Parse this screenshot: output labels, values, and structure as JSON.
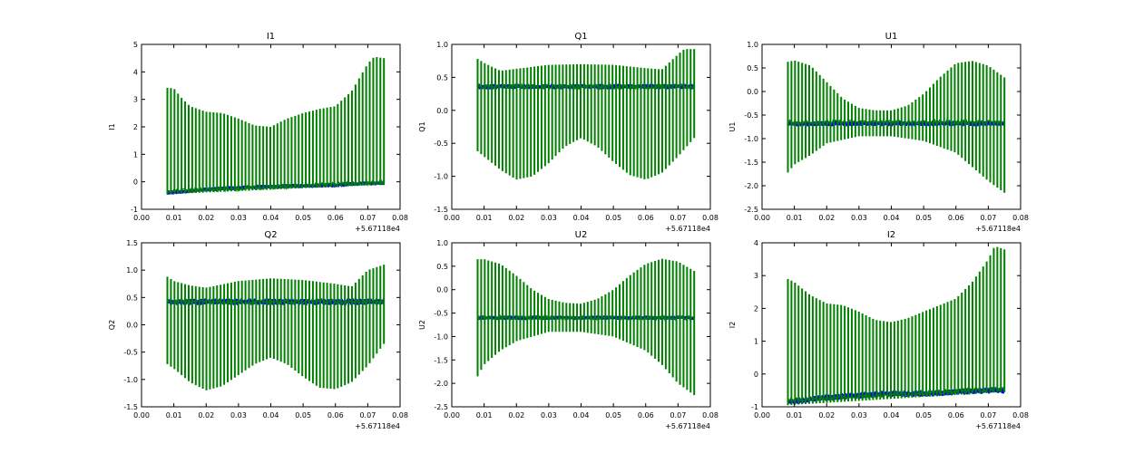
{
  "figure": {
    "background": "#ffffff",
    "series_colors": {
      "blue": "#0000ff",
      "green": "#007f00"
    }
  },
  "chart_data": [
    {
      "type": "line",
      "title": "I1",
      "ylabel": "I1",
      "xlim": [
        0.0,
        0.08
      ],
      "ylim": [
        -1,
        5
      ],
      "xticks": [
        "0.00",
        "0.01",
        "0.02",
        "0.03",
        "0.04",
        "0.05",
        "0.06",
        "0.07",
        "0.08"
      ],
      "yticks": [
        -1,
        0,
        1,
        2,
        3,
        4,
        5
      ],
      "x_offset": "+5.67118e4",
      "series": [
        {
          "color": "#0000ff",
          "kind": "noise",
          "points": [
            [
              0.008,
              -0.4
            ],
            [
              0.02,
              -0.28
            ],
            [
              0.03,
              -0.22
            ],
            [
              0.04,
              -0.17
            ],
            [
              0.05,
              -0.15
            ],
            [
              0.06,
              -0.12
            ],
            [
              0.07,
              -0.05
            ],
            [
              0.075,
              -0.05
            ]
          ],
          "width": 0.08
        },
        {
          "color": "#007f00",
          "kind": "spikes",
          "baseline": [
            [
              0.008,
              -0.35
            ],
            [
              0.075,
              -0.02
            ]
          ],
          "peaks": [
            [
              0.008,
              3.42
            ],
            [
              0.01,
              3.4
            ],
            [
              0.012,
              3.1
            ],
            [
              0.015,
              2.75
            ],
            [
              0.02,
              2.55
            ],
            [
              0.025,
              2.5
            ],
            [
              0.03,
              2.3
            ],
            [
              0.035,
              2.05
            ],
            [
              0.04,
              2.0
            ],
            [
              0.045,
              2.3
            ],
            [
              0.05,
              2.5
            ],
            [
              0.055,
              2.65
            ],
            [
              0.06,
              2.75
            ],
            [
              0.065,
              3.3
            ],
            [
              0.07,
              4.3
            ],
            [
              0.072,
              4.55
            ],
            [
              0.075,
              4.5
            ]
          ],
          "troughs": [
            [
              0.008,
              -0.45
            ],
            [
              0.075,
              -0.1
            ]
          ]
        }
      ]
    },
    {
      "type": "line",
      "title": "Q1",
      "ylabel": "Q1",
      "xlim": [
        0.0,
        0.08
      ],
      "ylim": [
        -1.5,
        1.0
      ],
      "xticks": [
        "0.00",
        "0.01",
        "0.02",
        "0.03",
        "0.04",
        "0.05",
        "0.06",
        "0.07",
        "0.08"
      ],
      "yticks": [
        -1.5,
        -1.0,
        -0.5,
        0.0,
        0.5,
        1.0
      ],
      "x_offset": "+5.67118e4",
      "series": [
        {
          "color": "#0000ff",
          "kind": "noise",
          "points": [
            [
              0.008,
              0.36
            ],
            [
              0.075,
              0.36
            ]
          ],
          "width": 0.1
        },
        {
          "color": "#007f00",
          "kind": "spikes",
          "baseline": [
            [
              0.008,
              0.36
            ],
            [
              0.075,
              0.36
            ]
          ],
          "peaks": [
            [
              0.008,
              0.78
            ],
            [
              0.01,
              0.72
            ],
            [
              0.015,
              0.6
            ],
            [
              0.02,
              0.63
            ],
            [
              0.03,
              0.69
            ],
            [
              0.04,
              0.7
            ],
            [
              0.05,
              0.69
            ],
            [
              0.06,
              0.64
            ],
            [
              0.065,
              0.62
            ],
            [
              0.07,
              0.85
            ],
            [
              0.072,
              0.93
            ],
            [
              0.075,
              0.93
            ]
          ],
          "troughs": [
            [
              0.008,
              -0.62
            ],
            [
              0.01,
              -0.7
            ],
            [
              0.015,
              -0.9
            ],
            [
              0.02,
              -1.05
            ],
            [
              0.025,
              -1.0
            ],
            [
              0.03,
              -0.8
            ],
            [
              0.035,
              -0.55
            ],
            [
              0.04,
              -0.42
            ],
            [
              0.045,
              -0.55
            ],
            [
              0.05,
              -0.78
            ],
            [
              0.055,
              -0.98
            ],
            [
              0.06,
              -1.05
            ],
            [
              0.065,
              -0.95
            ],
            [
              0.07,
              -0.7
            ],
            [
              0.075,
              -0.42
            ]
          ]
        }
      ]
    },
    {
      "type": "line",
      "title": "U1",
      "ylabel": "U1",
      "xlim": [
        0.0,
        0.08
      ],
      "ylim": [
        -2.5,
        1.0
      ],
      "xticks": [
        "0.00",
        "0.01",
        "0.02",
        "0.03",
        "0.04",
        "0.05",
        "0.06",
        "0.07",
        "0.08"
      ],
      "yticks": [
        -2.5,
        -2.0,
        -1.5,
        -1.0,
        -0.5,
        0.0,
        0.5,
        1.0
      ],
      "x_offset": "+5.67118e4",
      "series": [
        {
          "color": "#0000ff",
          "kind": "noise",
          "points": [
            [
              0.008,
              -0.68
            ],
            [
              0.075,
              -0.68
            ]
          ],
          "width": 0.1
        },
        {
          "color": "#007f00",
          "kind": "spikes",
          "baseline": [
            [
              0.008,
              -0.65
            ],
            [
              0.075,
              -0.65
            ]
          ],
          "peaks": [
            [
              0.008,
              0.63
            ],
            [
              0.01,
              0.66
            ],
            [
              0.015,
              0.55
            ],
            [
              0.02,
              0.2
            ],
            [
              0.025,
              -0.15
            ],
            [
              0.03,
              -0.35
            ],
            [
              0.035,
              -0.4
            ],
            [
              0.04,
              -0.4
            ],
            [
              0.045,
              -0.3
            ],
            [
              0.05,
              -0.05
            ],
            [
              0.055,
              0.3
            ],
            [
              0.06,
              0.6
            ],
            [
              0.065,
              0.65
            ],
            [
              0.07,
              0.55
            ],
            [
              0.075,
              0.3
            ]
          ],
          "troughs": [
            [
              0.008,
              -1.72
            ],
            [
              0.01,
              -1.55
            ],
            [
              0.015,
              -1.35
            ],
            [
              0.02,
              -1.1
            ],
            [
              0.03,
              -0.95
            ],
            [
              0.04,
              -0.95
            ],
            [
              0.05,
              -1.05
            ],
            [
              0.06,
              -1.3
            ],
            [
              0.065,
              -1.6
            ],
            [
              0.07,
              -1.9
            ],
            [
              0.075,
              -2.15
            ]
          ]
        }
      ]
    },
    {
      "type": "line",
      "title": "Q2",
      "ylabel": "Q2",
      "xlim": [
        0.0,
        0.08
      ],
      "ylim": [
        -1.5,
        1.5
      ],
      "xticks": [
        "0.00",
        "0.01",
        "0.02",
        "0.03",
        "0.04",
        "0.05",
        "0.06",
        "0.07",
        "0.08"
      ],
      "yticks": [
        -1.5,
        -1.0,
        -0.5,
        0.0,
        0.5,
        1.0,
        1.5
      ],
      "x_offset": "+5.67118e4",
      "series": [
        {
          "color": "#0000ff",
          "kind": "noise",
          "points": [
            [
              0.008,
              0.42
            ],
            [
              0.075,
              0.42
            ]
          ],
          "width": 0.12
        },
        {
          "color": "#007f00",
          "kind": "spikes",
          "baseline": [
            [
              0.008,
              0.42
            ],
            [
              0.075,
              0.42
            ]
          ],
          "peaks": [
            [
              0.008,
              0.88
            ],
            [
              0.01,
              0.8
            ],
            [
              0.015,
              0.72
            ],
            [
              0.02,
              0.68
            ],
            [
              0.03,
              0.8
            ],
            [
              0.04,
              0.85
            ],
            [
              0.05,
              0.82
            ],
            [
              0.06,
              0.75
            ],
            [
              0.065,
              0.7
            ],
            [
              0.07,
              1.0
            ],
            [
              0.075,
              1.1
            ]
          ],
          "troughs": [
            [
              0.008,
              -0.72
            ],
            [
              0.01,
              -0.8
            ],
            [
              0.015,
              -1.05
            ],
            [
              0.02,
              -1.2
            ],
            [
              0.025,
              -1.12
            ],
            [
              0.03,
              -0.92
            ],
            [
              0.035,
              -0.72
            ],
            [
              0.04,
              -0.6
            ],
            [
              0.045,
              -0.72
            ],
            [
              0.05,
              -0.95
            ],
            [
              0.055,
              -1.15
            ],
            [
              0.06,
              -1.18
            ],
            [
              0.065,
              -1.05
            ],
            [
              0.07,
              -0.75
            ],
            [
              0.075,
              -0.35
            ]
          ]
        }
      ]
    },
    {
      "type": "line",
      "title": "U2",
      "ylabel": "U2",
      "xlim": [
        0.0,
        0.08
      ],
      "ylim": [
        -2.5,
        1.0
      ],
      "xticks": [
        "0.00",
        "0.01",
        "0.02",
        "0.03",
        "0.04",
        "0.05",
        "0.06",
        "0.07",
        "0.08"
      ],
      "yticks": [
        -2.5,
        -2.0,
        -1.5,
        -1.0,
        -0.5,
        0.0,
        0.5,
        1.0
      ],
      "x_offset": "+5.67118e4",
      "series": [
        {
          "color": "#0000ff",
          "kind": "noise",
          "points": [
            [
              0.008,
              -0.6
            ],
            [
              0.075,
              -0.6
            ]
          ],
          "width": 0.08
        },
        {
          "color": "#007f00",
          "kind": "spikes",
          "baseline": [
            [
              0.008,
              -0.6
            ],
            [
              0.075,
              -0.6
            ]
          ],
          "peaks": [
            [
              0.008,
              0.65
            ],
            [
              0.01,
              0.65
            ],
            [
              0.015,
              0.55
            ],
            [
              0.02,
              0.3
            ],
            [
              0.025,
              0.0
            ],
            [
              0.03,
              -0.2
            ],
            [
              0.035,
              -0.28
            ],
            [
              0.04,
              -0.3
            ],
            [
              0.045,
              -0.2
            ],
            [
              0.05,
              0.0
            ],
            [
              0.055,
              0.3
            ],
            [
              0.06,
              0.55
            ],
            [
              0.065,
              0.66
            ],
            [
              0.07,
              0.6
            ],
            [
              0.075,
              0.4
            ]
          ],
          "troughs": [
            [
              0.008,
              -1.85
            ],
            [
              0.01,
              -1.6
            ],
            [
              0.015,
              -1.3
            ],
            [
              0.02,
              -1.1
            ],
            [
              0.03,
              -0.9
            ],
            [
              0.04,
              -0.9
            ],
            [
              0.05,
              -1.0
            ],
            [
              0.06,
              -1.3
            ],
            [
              0.065,
              -1.6
            ],
            [
              0.07,
              -2.0
            ],
            [
              0.075,
              -2.25
            ]
          ]
        }
      ]
    },
    {
      "type": "line",
      "title": "I2",
      "ylabel": "I2",
      "xlim": [
        0.0,
        0.08
      ],
      "ylim": [
        -1,
        4
      ],
      "xticks": [
        "0.00",
        "0.01",
        "0.02",
        "0.03",
        "0.04",
        "0.05",
        "0.06",
        "0.07",
        "0.08"
      ],
      "yticks": [
        -1,
        0,
        1,
        2,
        3,
        4
      ],
      "x_offset": "+5.67118e4",
      "series": [
        {
          "color": "#0000ff",
          "kind": "noise",
          "points": [
            [
              0.008,
              -0.85
            ],
            [
              0.02,
              -0.72
            ],
            [
              0.03,
              -0.65
            ],
            [
              0.04,
              -0.6
            ],
            [
              0.05,
              -0.6
            ],
            [
              0.06,
              -0.55
            ],
            [
              0.07,
              -0.5
            ],
            [
              0.075,
              -0.5
            ]
          ],
          "width": 0.12
        },
        {
          "color": "#007f00",
          "kind": "spikes",
          "baseline": [
            [
              0.008,
              -0.8
            ],
            [
              0.075,
              -0.45
            ]
          ],
          "peaks": [
            [
              0.008,
              2.9
            ],
            [
              0.01,
              2.8
            ],
            [
              0.015,
              2.4
            ],
            [
              0.02,
              2.15
            ],
            [
              0.025,
              2.1
            ],
            [
              0.03,
              1.9
            ],
            [
              0.035,
              1.65
            ],
            [
              0.04,
              1.58
            ],
            [
              0.045,
              1.7
            ],
            [
              0.05,
              1.9
            ],
            [
              0.055,
              2.1
            ],
            [
              0.06,
              2.3
            ],
            [
              0.065,
              2.8
            ],
            [
              0.07,
              3.5
            ],
            [
              0.072,
              3.9
            ],
            [
              0.075,
              3.8
            ]
          ],
          "troughs": [
            [
              0.008,
              -0.95
            ],
            [
              0.075,
              -0.55
            ]
          ]
        }
      ]
    }
  ]
}
